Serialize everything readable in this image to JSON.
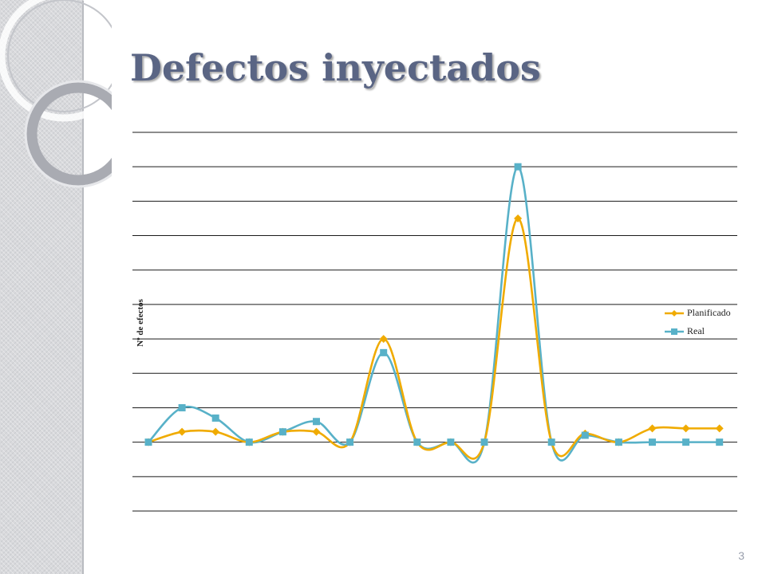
{
  "slide": {
    "title": "Defectos inyectados",
    "page_number": "3"
  },
  "colors": {
    "title": "#5a6584",
    "gridline": "#1a1a1a",
    "planificado": "#f0ab00",
    "real": "#58b1c8"
  },
  "chart_data": {
    "type": "line",
    "title": "",
    "xlabel": "",
    "ylabel": "Nº de efectos",
    "ylim": [
      -2,
      9
    ],
    "gridlines": true,
    "smooth": true,
    "legend_position": "right",
    "series": [
      {
        "name": "Planificado",
        "color": "#f0ab00",
        "marker": "diamond",
        "values": [
          0,
          0.3,
          0.3,
          0,
          0.3,
          0.3,
          0,
          3,
          0,
          0,
          0,
          6.5,
          0,
          0.25,
          0,
          0.4,
          0.4,
          0.4
        ]
      },
      {
        "name": "Real",
        "color": "#58b1c8",
        "marker": "square",
        "values": [
          0,
          1,
          0.7,
          0,
          0.3,
          0.6,
          0,
          2.6,
          0,
          0,
          0,
          8,
          0,
          0.2,
          0,
          0,
          0,
          0
        ]
      }
    ]
  }
}
